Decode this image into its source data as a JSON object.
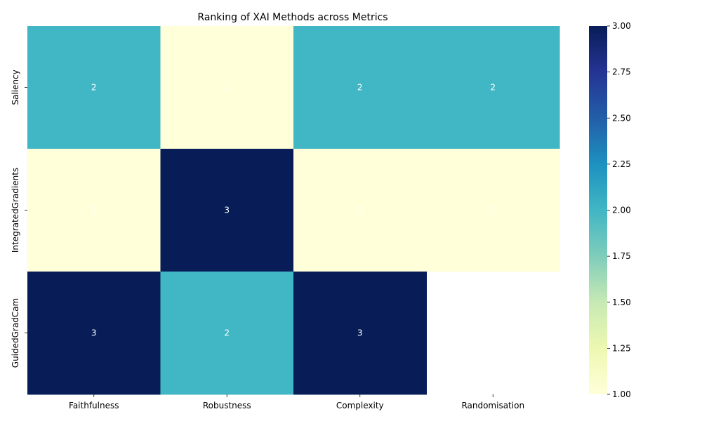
{
  "chart_data": {
    "type": "heatmap",
    "title": "Ranking of XAI Methods across Metrics",
    "xlabel": "",
    "ylabel": "",
    "x_categories": [
      "Faithfulness",
      "Robustness",
      "Complexity",
      "Randomisation"
    ],
    "y_categories": [
      "Saliency",
      "IntegratedGradients",
      "GuidedGradCam"
    ],
    "values": [
      [
        2,
        1,
        2,
        2
      ],
      [
        1,
        3,
        1,
        1
      ],
      [
        3,
        2,
        3,
        null
      ]
    ],
    "annotations": true,
    "colormap": "YlGnBu",
    "colorbar": {
      "min": 1.0,
      "max": 3.0,
      "ticks": [
        "1.00",
        "1.25",
        "1.50",
        "1.75",
        "2.00",
        "2.25",
        "2.50",
        "2.75",
        "3.00"
      ]
    },
    "grid": false
  }
}
